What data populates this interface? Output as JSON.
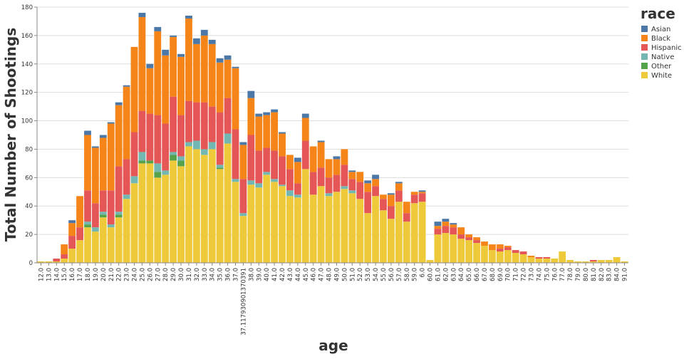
{
  "chart_data": {
    "type": "bar",
    "stacked": true,
    "xlabel": "age",
    "ylabel": "Total Number of Shootings",
    "ylim": [
      0,
      180
    ],
    "yticks": [
      0,
      20,
      40,
      60,
      80,
      100,
      120,
      140,
      160,
      180
    ],
    "grid": true,
    "legend_title": "race",
    "legend_placement": "top-right",
    "categories": [
      "12.0",
      "13.0",
      "14.0",
      "15.0",
      "16.0",
      "17.0",
      "18.0",
      "19.0",
      "20.0",
      "21.0",
      "22.0",
      "23.0",
      "24.0",
      "25.0",
      "26.0",
      "27.0",
      "28.0",
      "29.0",
      "30.0",
      "31.0",
      "32.0",
      "33.0",
      "34.0",
      "35.0",
      "36.0",
      "37.0",
      "37.117930901370391",
      "38.0",
      "39.0",
      "40.0",
      "41.0",
      "42.0",
      "43.0",
      "44.0",
      "45.0",
      "46.0",
      "47.0",
      "48.0",
      "49.0",
      "50.0",
      "51.0",
      "52.0",
      "53.0",
      "54.0",
      "55.0",
      "56.0",
      "57.0",
      "58.0",
      "59.0",
      "6.0",
      "60.0",
      "61.0",
      "62.0",
      "63.0",
      "64.0",
      "65.0",
      "66.0",
      "67.0",
      "68.0",
      "69.0",
      "70.0",
      "71.0",
      "72.0",
      "73.0",
      "74.0",
      "75.0",
      "76.0",
      "77.0",
      "78.0",
      "79.0",
      "80.0",
      "81.0",
      "82.0",
      "83.0",
      "84.0",
      "91.0"
    ],
    "series": [
      {
        "name": "White",
        "color": "#EECA3B",
        "values": [
          1,
          1,
          1,
          3,
          10,
          16,
          25,
          22,
          32,
          25,
          32,
          45,
          56,
          70,
          70,
          60,
          62,
          72,
          68,
          82,
          80,
          76,
          80,
          66,
          84,
          57,
          33,
          55,
          53,
          62,
          57,
          54,
          47,
          46,
          66,
          48,
          54,
          47,
          50,
          52,
          49,
          45,
          35,
          47,
          37,
          31,
          43,
          29,
          42,
          43,
          2,
          20,
          21,
          20,
          17,
          16,
          14,
          12,
          9,
          8,
          9,
          7,
          6,
          4,
          3,
          3,
          3,
          8,
          2,
          1,
          1,
          1,
          2,
          2,
          4,
          1
        ]
      },
      {
        "name": "Other",
        "color": "#54A24B",
        "values": [
          0,
          0,
          0,
          0,
          0,
          0,
          2,
          0,
          2,
          0,
          2,
          0,
          0,
          2,
          2,
          4,
          0,
          4,
          4,
          0,
          0,
          0,
          0,
          1,
          0,
          0,
          0,
          0,
          0,
          0,
          0,
          0,
          0,
          0,
          0,
          0,
          0,
          0,
          0,
          0,
          0,
          0,
          0,
          0,
          0,
          0,
          0,
          0,
          0,
          0,
          0,
          0,
          0,
          0,
          0,
          0,
          0,
          0,
          0,
          0,
          0,
          0,
          0,
          0,
          0,
          0,
          0,
          0,
          0,
          0,
          0,
          0,
          0,
          0,
          0,
          0
        ]
      },
      {
        "name": "Native",
        "color": "#72B7B2",
        "values": [
          0,
          0,
          0,
          0,
          0,
          0,
          2,
          3,
          2,
          2,
          2,
          3,
          5,
          6,
          0,
          6,
          3,
          2,
          3,
          3,
          6,
          4,
          5,
          2,
          7,
          2,
          2,
          3,
          3,
          2,
          2,
          1,
          4,
          2,
          0,
          0,
          0,
          2,
          0,
          2,
          2,
          0,
          0,
          0,
          0,
          0,
          0,
          0,
          0,
          0,
          0,
          0,
          0,
          0,
          0,
          0,
          0,
          0,
          0,
          0,
          0,
          0,
          0,
          0,
          0,
          0,
          0,
          0,
          0,
          0,
          0,
          0,
          0,
          0,
          0,
          0
        ]
      },
      {
        "name": "Hispanic",
        "color": "#E45756",
        "values": [
          0,
          0,
          2,
          3,
          9,
          9,
          22,
          17,
          15,
          24,
          32,
          25,
          31,
          29,
          33,
          34,
          33,
          39,
          29,
          29,
          27,
          33,
          25,
          37,
          25,
          35,
          24,
          32,
          23,
          17,
          20,
          20,
          15,
          8,
          20,
          16,
          13,
          11,
          12,
          15,
          8,
          12,
          15,
          7,
          8,
          9,
          8,
          6,
          6,
          6,
          0,
          4,
          5,
          5,
          3,
          2,
          2,
          0,
          0,
          2,
          2,
          2,
          2,
          0,
          1,
          1,
          0,
          0,
          0,
          0,
          0,
          1,
          0,
          0,
          0,
          0
        ]
      },
      {
        "name": "Black",
        "color": "#F58518",
        "values": [
          0,
          0,
          0,
          7,
          9,
          22,
          39,
          39,
          37,
          47,
          43,
          51,
          60,
          66,
          32,
          59,
          48,
          42,
          41,
          58,
          41,
          47,
          44,
          35,
          27,
          43,
          24,
          26,
          24,
          23,
          27,
          16,
          10,
          15,
          16,
          18,
          18,
          13,
          11,
          11,
          5,
          7,
          6,
          5,
          3,
          8,
          5,
          8,
          2,
          1,
          0,
          2,
          3,
          2,
          5,
          2,
          2,
          3,
          4,
          3,
          1,
          0,
          0,
          1,
          0,
          0,
          0,
          0,
          0,
          0,
          0,
          0,
          0,
          0,
          0,
          0
        ]
      },
      {
        "name": "Asian",
        "color": "#4C78A8",
        "values": [
          0,
          0,
          0,
          0,
          2,
          0,
          3,
          1,
          2,
          1,
          2,
          1,
          0,
          3,
          3,
          3,
          4,
          1,
          2,
          2,
          4,
          4,
          3,
          3,
          3,
          1,
          2,
          5,
          2,
          2,
          2,
          1,
          0,
          3,
          3,
          0,
          1,
          0,
          2,
          0,
          1,
          0,
          2,
          3,
          0,
          1,
          1,
          0,
          0,
          1,
          0,
          3,
          2,
          1,
          0,
          0,
          0,
          0,
          0,
          0,
          0,
          0,
          0,
          0,
          0,
          0,
          0,
          0,
          0,
          0,
          0,
          0,
          0,
          0,
          0,
          0
        ]
      }
    ],
    "legend_order": [
      "Asian",
      "Black",
      "Hispanic",
      "Native",
      "Other",
      "White"
    ]
  }
}
